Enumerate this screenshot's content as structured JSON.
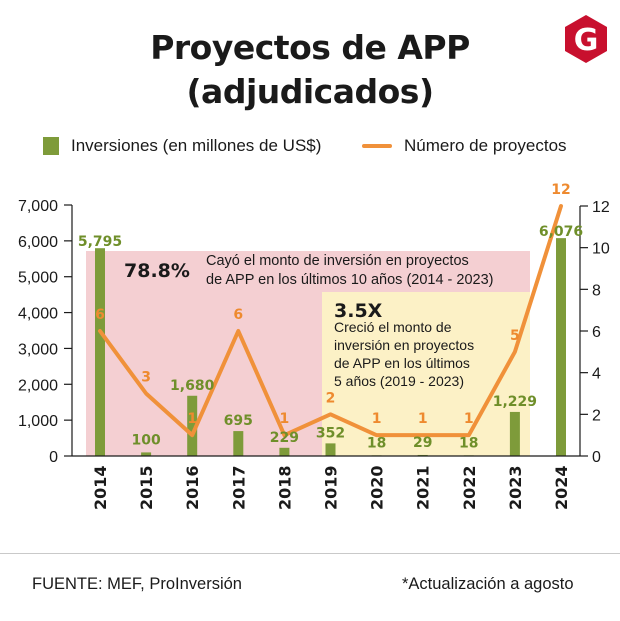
{
  "header": {
    "title_line1": "Proyectos de APP",
    "title_line2": "(adjudicados)",
    "logo_letter": "G"
  },
  "legend": {
    "bars_label": "Inversiones (en millones de US$)",
    "line_label": "Número de proyectos"
  },
  "colors": {
    "bar": "#7e9b3a",
    "bar_label": "#6f8f2a",
    "line": "#f0913a",
    "line_label": "#ee8a2f",
    "pink_band": "#f4cfd2",
    "yellow_band": "#fcf1c6",
    "logo": "#c8102e"
  },
  "annotations": {
    "pink_stat": "78.8%",
    "pink_text_line1": "Cayó el monto de inversión en proyectos",
    "pink_text_line2": "de APP en los últimos 10 años (2014 - 2023)",
    "yellow_stat": "3.5X",
    "yellow_text_line1": "Creció el monto de",
    "yellow_text_line2": "inversión en proyectos",
    "yellow_text_line3": "de APP en los últimos",
    "yellow_text_line4": "5 años (2019 - 2023)"
  },
  "chart_data": {
    "type": "bar+line",
    "categories": [
      "2014",
      "2015",
      "2016",
      "2017",
      "2018",
      "2019",
      "2020",
      "2021",
      "2022",
      "2023",
      "2024"
    ],
    "series": [
      {
        "name": "Inversiones (en millones de US$)",
        "type": "bar",
        "axis": "left",
        "values": [
          5795,
          100,
          1680,
          695,
          229,
          352,
          18,
          29,
          18,
          1229,
          6076
        ],
        "labels": [
          "5,795",
          "100",
          "1,680",
          "695",
          "229",
          "352",
          "18",
          "29",
          "18",
          "1,229",
          "6,076"
        ]
      },
      {
        "name": "Número de proyectos",
        "type": "line",
        "axis": "right",
        "values": [
          6,
          3,
          1,
          6,
          1,
          2,
          1,
          1,
          1,
          5,
          12
        ],
        "labels": [
          "6",
          "3",
          "1",
          "6",
          "1",
          "2",
          "1",
          "1",
          "1",
          "5",
          "12"
        ]
      }
    ],
    "y_left": {
      "min": 0,
      "max": 7000,
      "ticks": [
        0,
        1000,
        2000,
        3000,
        4000,
        5000,
        6000,
        7000
      ],
      "tick_labels": [
        "0",
        "1,000",
        "2,000",
        "3,000",
        "4,000",
        "5,000",
        "6,000",
        "7,000"
      ]
    },
    "y_right": {
      "min": 0,
      "max": 12,
      "ticks": [
        0,
        2,
        4,
        6,
        8,
        10,
        12
      ],
      "tick_labels": [
        "0",
        "2",
        "4",
        "6",
        "8",
        "10",
        "12"
      ]
    }
  },
  "footer": {
    "source": "FUENTE: MEF, ProInversión",
    "note": "*Actualización a agosto"
  }
}
